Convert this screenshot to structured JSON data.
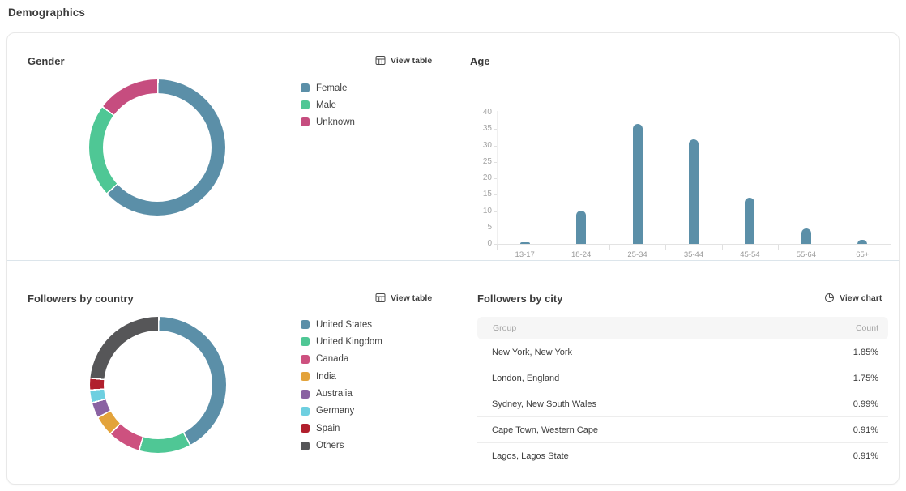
{
  "page": {
    "title": "Demographics"
  },
  "sections": {
    "gender": {
      "title": "Gender",
      "action": {
        "label": "View table",
        "icon": "table-icon"
      },
      "chart": {
        "type": "donut",
        "unit": "percent",
        "segments": [
          {
            "label": "Female",
            "value": 63,
            "color": "#5b8fa8"
          },
          {
            "label": "Male",
            "value": 22,
            "color": "#4fc795"
          },
          {
            "label": "Unknown",
            "value": 15,
            "color": "#c64d7f"
          }
        ]
      }
    },
    "age": {
      "title": "Age",
      "chart": {
        "type": "bar",
        "categories": [
          "13-17",
          "18-24",
          "25-34",
          "35-44",
          "45-54",
          "55-64",
          "65+"
        ],
        "values": [
          0.4,
          10.1,
          36.6,
          31.8,
          14.1,
          4.8,
          1.2
        ],
        "ylim": [
          0,
          40
        ],
        "yticks": [
          0,
          5,
          10,
          15,
          20,
          25,
          30,
          35,
          40
        ],
        "bar_color": "#5b8fa8",
        "grid": false
      }
    },
    "country": {
      "title": "Followers by country",
      "action": {
        "label": "View table",
        "icon": "table-icon"
      },
      "chart": {
        "type": "donut",
        "unit": "percent",
        "segments": [
          {
            "label": "United States",
            "value": 42.0,
            "color": "#5b8fa8"
          },
          {
            "label": "United Kingdom",
            "value": 12.3,
            "color": "#4fc795"
          },
          {
            "label": "Canada",
            "value": 7.8,
            "color": "#cd517f"
          },
          {
            "label": "India",
            "value": 4.8,
            "color": "#e3a33b"
          },
          {
            "label": "Australia",
            "value": 3.7,
            "color": "#8a62a2"
          },
          {
            "label": "Germany",
            "value": 3.0,
            "color": "#6ecfe0"
          },
          {
            "label": "Spain",
            "value": 2.8,
            "color": "#b11f2d"
          },
          {
            "label": "Others",
            "value": 23.6,
            "color": "#565658"
          }
        ]
      }
    },
    "city": {
      "title": "Followers by city",
      "action": {
        "label": "View chart",
        "icon": "pie-chart-icon"
      },
      "table": {
        "columns": [
          "Group",
          "Count"
        ],
        "rows": [
          {
            "group": "New York, New York",
            "count": "1.85%"
          },
          {
            "group": "London, England",
            "count": "1.75%"
          },
          {
            "group": "Sydney, New South Wales",
            "count": "0.99%"
          },
          {
            "group": "Cape Town, Western Cape",
            "count": "0.91%"
          },
          {
            "group": "Lagos, Lagos State",
            "count": "0.91%"
          }
        ]
      }
    }
  },
  "colors": {
    "accent_bar": "#5b8fa8",
    "card_border": "#e8e8e8",
    "row_divider": "#dce5eb",
    "table_header_bg": "#f6f6f6",
    "axis_label": "#a3a3a3"
  }
}
